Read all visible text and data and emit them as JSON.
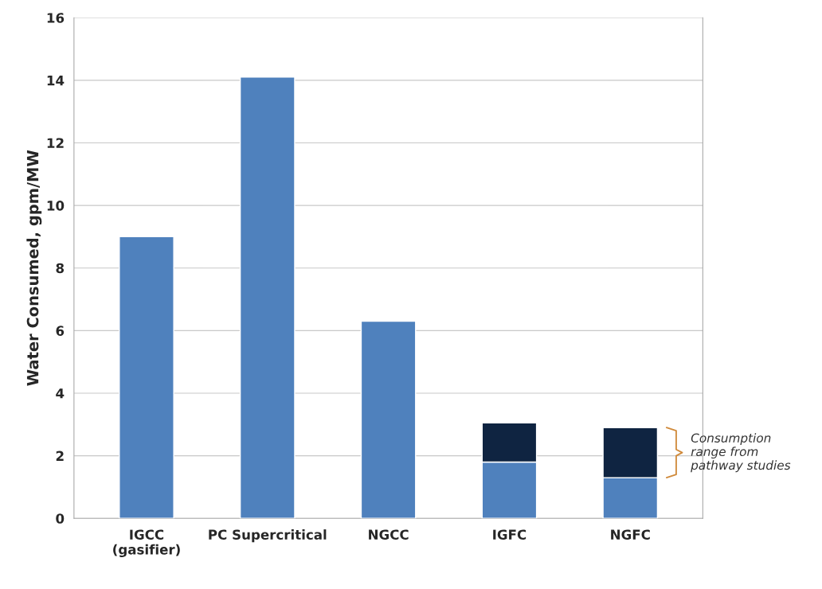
{
  "chart_data": {
    "type": "bar",
    "ylabel": "Water Consumed, gpm/MW",
    "categories": [
      "IGCC\n(gasifier)",
      "PC Supercritical",
      "NGCC",
      "IGFC",
      "NGFC"
    ],
    "stacked": true,
    "series": [
      {
        "color": "#4f81bd",
        "values": [
          9.0,
          14.1,
          6.3,
          1.8,
          1.3
        ]
      },
      {
        "color": "#0f2441",
        "values": [
          null,
          null,
          null,
          1.25,
          1.6
        ]
      }
    ],
    "ylim": [
      0,
      16
    ],
    "yticks": [
      0,
      2,
      4,
      6,
      8,
      10,
      12,
      14,
      16
    ],
    "grid": "y",
    "annotations": [
      "Consumption\nrange from\npathway studies"
    ]
  }
}
